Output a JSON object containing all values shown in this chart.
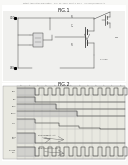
{
  "bg_color": "#f8f8f6",
  "header_text": "Patent Application Publication    Dec. 26, 2019  Sheet 1 of 11    US 2019/0399999 A1",
  "fig1_title": "FIG.1",
  "fig2_title": "FIG.2",
  "line_color": "#444444",
  "fig_bg": "#ffffff",
  "wf_bg": "#e8e8e2",
  "wf_grid_color": "#bbbbbb",
  "wf_line_color": "#222222",
  "wf_fill_color": "#bbbbbb"
}
